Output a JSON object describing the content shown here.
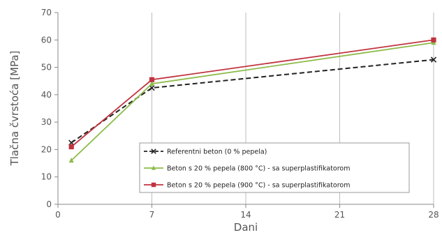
{
  "chart_data": {
    "type": "line",
    "xlabel": "Dani",
    "ylabel": "Tlačna čvrstoća [MPa]",
    "xlim": [
      0,
      28
    ],
    "ylim": [
      0,
      70
    ],
    "x_ticks": [
      0,
      7,
      14,
      21,
      28
    ],
    "y_ticks": [
      0,
      10,
      20,
      30,
      40,
      50,
      60,
      70
    ],
    "grid": "vertical",
    "legend_position": "bottom-right",
    "series": [
      {
        "name": "Referentni beton (0 % pepela)",
        "color": "#222222",
        "line_style": "dashed",
        "marker": "x",
        "x": [
          1,
          7,
          28
        ],
        "y": [
          22.5,
          42.5,
          52.8
        ]
      },
      {
        "name": "Beton s 20 % pepela (800 °C) - sa superplastifikatorom",
        "color": "#8dbb4a",
        "line_style": "solid",
        "marker": "triangle",
        "x": [
          1,
          7,
          28
        ],
        "y": [
          16,
          44,
          59
        ]
      },
      {
        "name": "Beton s 20 % pepela (900 °C) - sa superplastifikatorom",
        "color": "#c0343f",
        "line_style": "solid",
        "marker": "square",
        "x": [
          1,
          7,
          28
        ],
        "y": [
          21,
          45.5,
          60
        ]
      }
    ]
  }
}
